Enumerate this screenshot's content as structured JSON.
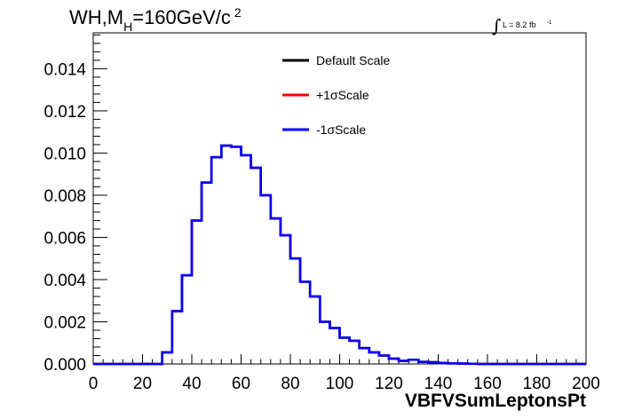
{
  "chart_data": {
    "type": "histogram",
    "title_parts": {
      "prefix": "WH,M",
      "subscript": "H",
      "suffix": "=160GeV/c",
      "superscript": "2"
    },
    "lumi": {
      "integral_symbol": "∫",
      "text": "L = 8.2 fb",
      "superscript": "-1"
    },
    "xlabel": "VBFVSumLeptonsPt",
    "xlim": [
      0,
      200
    ],
    "ylim": [
      0,
      0.0157
    ],
    "x_ticks": [
      "0",
      "20",
      "40",
      "60",
      "80",
      "100",
      "120",
      "140",
      "160",
      "180",
      "200"
    ],
    "y_ticks": [
      "0.000",
      "0.002",
      "0.004",
      "0.006",
      "0.008",
      "0.010",
      "0.012",
      "0.014"
    ],
    "bin_width": 4,
    "bin_edges_start": 0,
    "values": [
      0,
      0,
      0,
      0,
      0,
      0,
      0,
      0.00055,
      0.0025,
      0.0042,
      0.0068,
      0.0086,
      0.0098,
      0.01035,
      0.0103,
      0.0099,
      0.0093,
      0.008,
      0.0069,
      0.0061,
      0.005,
      0.0039,
      0.0032,
      0.002,
      0.0017,
      0.00125,
      0.0011,
      0.00075,
      0.00055,
      0.0004,
      0.00025,
      0.00015,
      0.0002,
      0.0001,
      8e-05,
      5e-05,
      3e-05,
      2e-05,
      1e-05,
      0,
      0,
      0,
      0,
      0,
      0,
      0,
      0,
      0,
      0,
      0
    ],
    "series": [
      {
        "name": "Default Scale",
        "color": "#000000"
      },
      {
        "name": "+1σScale",
        "color": "#ff0000"
      },
      {
        "name": "-1σScale",
        "color": "#0000ff"
      }
    ]
  }
}
